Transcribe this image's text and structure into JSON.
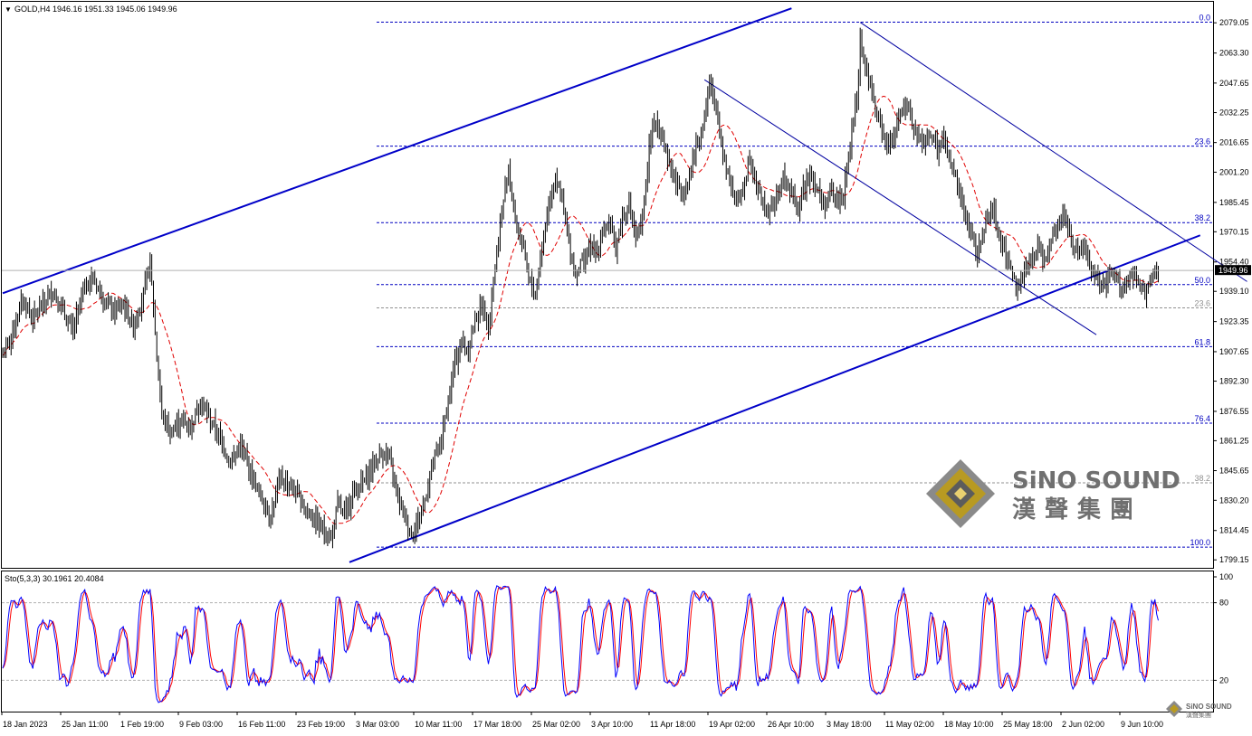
{
  "chart_data": {
    "type": "candlestick",
    "symbol_header": "GOLD,H4  1946.16 1951.33 1945.06 1949.96",
    "current_price": "1949.96",
    "price_axis": {
      "ylim": [
        1795,
        2090
      ],
      "ticks": [
        "2079.05",
        "2063.30",
        "2047.65",
        "2032.25",
        "2016.65",
        "2001.20",
        "1985.45",
        "1970.15",
        "1954.40",
        "1939.10",
        "1923.35",
        "1907.65",
        "1892.30",
        "1876.55",
        "1861.25",
        "1845.65",
        "1830.20",
        "1814.45",
        "1799.15"
      ]
    },
    "time_axis": {
      "labels": [
        "18 Jan 2023",
        "25 Jan 11:00",
        "1 Feb 19:00",
        "9 Feb 03:00",
        "16 Feb 11:00",
        "23 Feb 19:00",
        "3 Mar 03:00",
        "10 Mar 11:00",
        "17 Mar 18:00",
        "25 Mar 02:00",
        "3 Apr 10:00",
        "11 Apr 18:00",
        "19 Apr 02:00",
        "26 Apr 10:00",
        "3 May 18:00",
        "11 May 02:00",
        "18 May 10:00",
        "25 May 18:00",
        "2 Jun 02:00",
        "9 Jun 10:00"
      ]
    },
    "price_path": [
      [
        0,
        1906
      ],
      [
        6,
        1918
      ],
      [
        12,
        1935
      ],
      [
        18,
        1925
      ],
      [
        24,
        1932
      ],
      [
        30,
        1940
      ],
      [
        36,
        1928
      ],
      [
        42,
        1918
      ],
      [
        48,
        1940
      ],
      [
        54,
        1946
      ],
      [
        60,
        1936
      ],
      [
        66,
        1928
      ],
      [
        72,
        1932
      ],
      [
        78,
        1921
      ],
      [
        84,
        1938
      ],
      [
        88,
        1955
      ],
      [
        90,
        1930
      ],
      [
        92,
        1905
      ],
      [
        95,
        1875
      ],
      [
        100,
        1865
      ],
      [
        106,
        1872
      ],
      [
        112,
        1868
      ],
      [
        118,
        1882
      ],
      [
        124,
        1872
      ],
      [
        130,
        1862
      ],
      [
        136,
        1850
      ],
      [
        142,
        1858
      ],
      [
        148,
        1845
      ],
      [
        154,
        1832
      ],
      [
        160,
        1822
      ],
      [
        166,
        1842
      ],
      [
        172,
        1838
      ],
      [
        178,
        1830
      ],
      [
        184,
        1822
      ],
      [
        190,
        1816
      ],
      [
        196,
        1810
      ],
      [
        200,
        1828
      ],
      [
        204,
        1822
      ],
      [
        210,
        1836
      ],
      [
        216,
        1840
      ],
      [
        222,
        1850
      ],
      [
        228,
        1856
      ],
      [
        232,
        1848
      ],
      [
        236,
        1832
      ],
      [
        240,
        1822
      ],
      [
        244,
        1812
      ],
      [
        248,
        1820
      ],
      [
        252,
        1830
      ],
      [
        256,
        1848
      ],
      [
        262,
        1862
      ],
      [
        266,
        1882
      ],
      [
        270,
        1902
      ],
      [
        274,
        1912
      ],
      [
        278,
        1908
      ],
      [
        282,
        1925
      ],
      [
        286,
        1932
      ],
      [
        290,
        1922
      ],
      [
        294,
        1952
      ],
      [
        298,
        1980
      ],
      [
        302,
        2005
      ],
      [
        306,
        1975
      ],
      [
        310,
        1965
      ],
      [
        314,
        1945
      ],
      [
        318,
        1938
      ],
      [
        322,
        1962
      ],
      [
        326,
        1985
      ],
      [
        330,
        2000
      ],
      [
        334,
        1985
      ],
      [
        338,
        1965
      ],
      [
        342,
        1948
      ],
      [
        346,
        1955
      ],
      [
        350,
        1962
      ],
      [
        354,
        1958
      ],
      [
        358,
        1970
      ],
      [
        362,
        1975
      ],
      [
        366,
        1962
      ],
      [
        370,
        1978
      ],
      [
        374,
        1985
      ],
      [
        378,
        1965
      ],
      [
        382,
        1975
      ],
      [
        386,
        2015
      ],
      [
        390,
        2028
      ],
      [
        394,
        2020
      ],
      [
        398,
        2005
      ],
      [
        402,
        1995
      ],
      [
        406,
        1990
      ],
      [
        410,
        2000
      ],
      [
        414,
        2015
      ],
      [
        418,
        2025
      ],
      [
        422,
        2048
      ],
      [
        426,
        2032
      ],
      [
        430,
        2012
      ],
      [
        434,
        1998
      ],
      [
        438,
        1985
      ],
      [
        442,
        1992
      ],
      [
        446,
        2010
      ],
      [
        450,
        1995
      ],
      [
        454,
        1985
      ],
      [
        458,
        1980
      ],
      [
        462,
        1988
      ],
      [
        466,
        1998
      ],
      [
        470,
        1992
      ],
      [
        474,
        1982
      ],
      [
        478,
        1992
      ],
      [
        482,
        2002
      ],
      [
        486,
        1992
      ],
      [
        490,
        1984
      ],
      [
        494,
        1990
      ],
      [
        498,
        1986
      ],
      [
        502,
        1990
      ],
      [
        506,
        2015
      ],
      [
        510,
        2040
      ],
      [
        512,
        2070
      ],
      [
        514,
        2060
      ],
      [
        518,
        2045
      ],
      [
        522,
        2030
      ],
      [
        526,
        2020
      ],
      [
        530,
        2015
      ],
      [
        534,
        2028
      ],
      [
        538,
        2035
      ],
      [
        542,
        2030
      ],
      [
        546,
        2020
      ],
      [
        550,
        2015
      ],
      [
        554,
        2022
      ],
      [
        558,
        2012
      ],
      [
        562,
        2018
      ],
      [
        566,
        2005
      ],
      [
        570,
        1995
      ],
      [
        574,
        1980
      ],
      [
        578,
        1968
      ],
      [
        582,
        1958
      ],
      [
        586,
        1972
      ],
      [
        590,
        1985
      ],
      [
        594,
        1972
      ],
      [
        598,
        1960
      ],
      [
        602,
        1950
      ],
      [
        606,
        1942
      ],
      [
        610,
        1948
      ],
      [
        614,
        1955
      ],
      [
        618,
        1962
      ],
      [
        622,
        1955
      ],
      [
        626,
        1968
      ],
      [
        630,
        1975
      ],
      [
        634,
        1980
      ],
      [
        638,
        1965
      ],
      [
        642,
        1958
      ],
      [
        646,
        1962
      ],
      [
        650,
        1950
      ],
      [
        654,
        1945
      ],
      [
        658,
        1940
      ],
      [
        662,
        1948
      ],
      [
        666,
        1945
      ],
      [
        670,
        1940
      ],
      [
        674,
        1948
      ],
      [
        678,
        1942
      ],
      [
        682,
        1938
      ],
      [
        686,
        1946
      ],
      [
        690,
        1950
      ]
    ],
    "overlays": {
      "channel_upper": {
        "start": [
          0,
          1938.1
        ],
        "end": [
          471,
          2086.6
        ],
        "color": "#0000c8"
      },
      "channel_lower": {
        "start": [
          207,
          1797.9
        ],
        "end": [
          715,
          1968.3
        ],
        "color": "#0000c8"
      },
      "down_channel_upper": {
        "start": [
          512,
          2079.3
        ],
        "end": [
          743,
          1944.2
        ],
        "color": "#0000a0"
      },
      "down_channel_lower": {
        "start": [
          419,
          2049.4
        ],
        "end": [
          653,
          1916.5
        ],
        "color": "#0000a0"
      },
      "moving_average_color": "#e00000"
    },
    "fib_levels": [
      {
        "label": "0.0",
        "price": 2079.4,
        "style": "blue"
      },
      {
        "label": "23.6",
        "price": 2014.8,
        "style": "blue"
      },
      {
        "label": "38.2",
        "price": 1974.9,
        "style": "blue"
      },
      {
        "label": "50.0",
        "price": 1942.6,
        "style": "blue"
      },
      {
        "label": "23.6",
        "price": 1930.5,
        "style": "grey"
      },
      {
        "label": "61.8",
        "price": 1910.3,
        "style": "blue"
      },
      {
        "label": "76.4",
        "price": 1870.4,
        "style": "blue"
      },
      {
        "label": "38.2",
        "price": 1839.3,
        "style": "grey"
      },
      {
        "label": "100.0",
        "price": 1805.8,
        "style": "blue"
      }
    ],
    "stochastic": {
      "header": "Sto(5,3,3) 30.1961 20.4084",
      "ylim": [
        0,
        100
      ],
      "ticks": [
        "100",
        "80",
        "20"
      ],
      "levels": [
        80,
        20
      ],
      "main_color": "#0000ff",
      "signal_color": "#ff0000"
    }
  },
  "watermark": {
    "brand_en": "SiNO SOUND",
    "brand_zh": "漢聲集團",
    "small_en": "SiNO SOUND",
    "small_zh": "漢聲集團"
  },
  "colors": {
    "grid_line": "#a0a0a0",
    "fib_blue": "#0000c0",
    "fib_grey": "#909090",
    "candle": "#000000",
    "current_price_bg": "#000000"
  }
}
